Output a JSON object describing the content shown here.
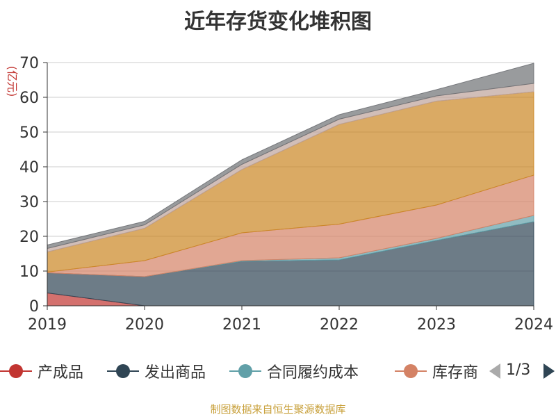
{
  "chart_data": {
    "type": "area",
    "stacked": true,
    "title": "近年存货变化堆积图",
    "ylabel": "(亿元)",
    "xlabel": "",
    "categories": [
      "2019",
      "2020",
      "2021",
      "2022",
      "2023",
      "2024"
    ],
    "ylim": [
      0,
      70
    ],
    "yticks": [
      "0",
      "10",
      "20",
      "30",
      "40",
      "50",
      "60",
      "70"
    ],
    "grid": true,
    "series": [
      {
        "name": "产成品",
        "color": "#c23531",
        "values": [
          3.7,
          0,
          0,
          0,
          0,
          0
        ]
      },
      {
        "name": "发出商品",
        "color": "#2f4554",
        "values": [
          5.8,
          8.4,
          12.8,
          13.2,
          18.8,
          24.2
        ]
      },
      {
        "name": "合同履约成本",
        "color": "#61a0a8",
        "values": [
          0,
          0,
          0.2,
          0.6,
          0.6,
          1.8
        ]
      },
      {
        "name": "库存商品",
        "color": "#d48265",
        "values": [
          0.2,
          4.6,
          8.0,
          9.7,
          9.6,
          11.6
        ]
      },
      {
        "color": "#ca8622",
        "values": [
          5.8,
          9.3,
          18.2,
          28.7,
          29.9,
          24.0
        ]
      },
      {
        "color": "#bda29a",
        "values": [
          1.0,
          1.0,
          1.5,
          1.5,
          1.5,
          2.4
        ]
      },
      {
        "color": "#6e7074",
        "values": [
          1.0,
          1.0,
          1.3,
          1.3,
          1.8,
          5.8
        ]
      }
    ]
  },
  "legend": {
    "items": [
      "产成品",
      "发出商品",
      "合同履约成本",
      "库存商"
    ],
    "page": "1/3"
  },
  "source_note": "制图数据来自恒生聚源数据库"
}
